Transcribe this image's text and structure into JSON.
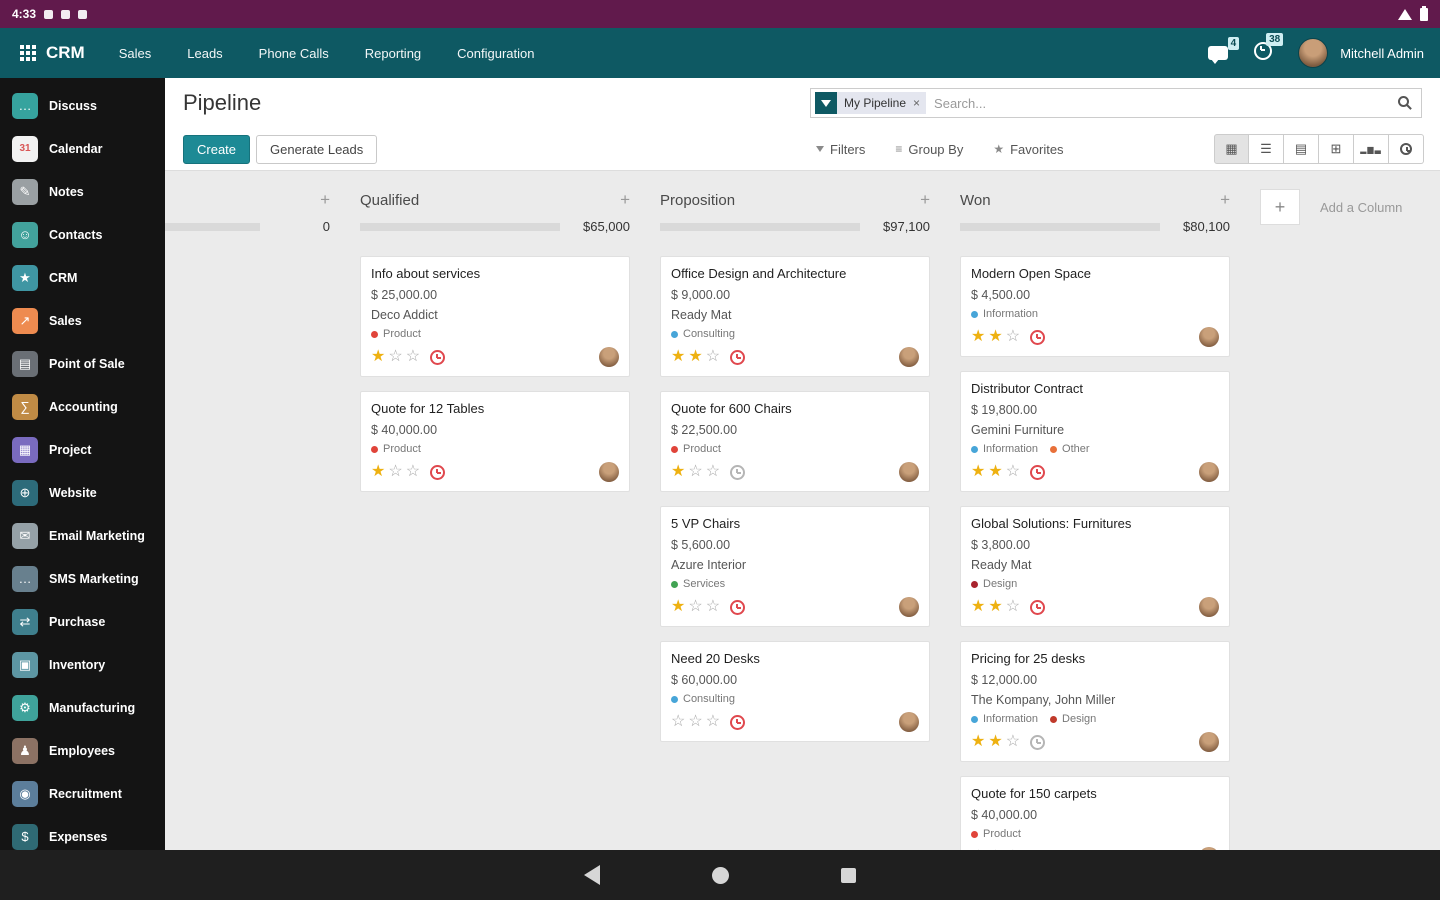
{
  "status_bar": {
    "time": "4:33"
  },
  "navbar": {
    "app_label": "CRM",
    "menus": [
      "Sales",
      "Leads",
      "Phone Calls",
      "Reporting",
      "Configuration"
    ],
    "message_badge": "4",
    "activity_badge": "38",
    "user_name": "Mitchell Admin"
  },
  "sidebar": {
    "items": [
      {
        "label": "Discuss",
        "icon": "chat-bubble",
        "glyph": "…",
        "color": "#36a39e"
      },
      {
        "label": "Calendar",
        "icon": "calendar",
        "glyph": "31",
        "color": "#f2f2f2",
        "fg": "#d95555"
      },
      {
        "label": "Notes",
        "icon": "pencil-note",
        "glyph": "✎",
        "color": "#9aa0a3"
      },
      {
        "label": "Contacts",
        "icon": "person",
        "glyph": "☺",
        "color": "#42a29c"
      },
      {
        "label": "CRM",
        "icon": "crm-star",
        "glyph": "★",
        "color": "#3f96a3"
      },
      {
        "label": "Sales",
        "icon": "sales-graph",
        "glyph": "↗",
        "color": "#ee8b50"
      },
      {
        "label": "Point of Sale",
        "icon": "cash-register",
        "glyph": "▤",
        "color": "#6a6f75"
      },
      {
        "label": "Accounting",
        "icon": "ledger-sum",
        "glyph": "∑",
        "color": "#c08b45"
      },
      {
        "label": "Project",
        "icon": "kanban-grid",
        "glyph": "▦",
        "color": "#7a6bbf"
      },
      {
        "label": "Website",
        "icon": "globe",
        "glyph": "⊕",
        "color": "#2d6b7a"
      },
      {
        "label": "Email Marketing",
        "icon": "envelope",
        "glyph": "✉",
        "color": "#95a1a7"
      },
      {
        "label": "SMS Marketing",
        "icon": "sms-bubble",
        "glyph": "…",
        "color": "#68808e"
      },
      {
        "label": "Purchase",
        "icon": "exchange-arrows",
        "glyph": "⇄",
        "color": "#3f7f8d"
      },
      {
        "label": "Inventory",
        "icon": "boxes",
        "glyph": "▣",
        "color": "#5d96a3"
      },
      {
        "label": "Manufacturing",
        "icon": "gear",
        "glyph": "⚙",
        "color": "#3fa39b"
      },
      {
        "label": "Employees",
        "icon": "employee-person",
        "glyph": "♟",
        "color": "#8c7264"
      },
      {
        "label": "Recruitment",
        "icon": "target-person",
        "glyph": "◉",
        "color": "#5c7e9b"
      },
      {
        "label": "Expenses",
        "icon": "dollar-receipt",
        "glyph": "$",
        "color": "#2f6a74"
      }
    ]
  },
  "control_panel": {
    "page_title": "Pipeline",
    "create_label": "Create",
    "generate_label": "Generate Leads",
    "facet_label": "My Pipeline",
    "facet_remove": "×",
    "search_placeholder": "Search...",
    "filters_label": "Filters",
    "group_by_label": "Group By",
    "favorites_label": "Favorites",
    "icons": {
      "group_by_glyph": "≡",
      "favorites_glyph": "★",
      "kanban_glyph": "▦",
      "list_glyph": "☰",
      "calendar_glyph": "▤",
      "pivot_glyph": "⊞",
      "graph_glyph": "▂▆▃"
    }
  },
  "board": {
    "add_glyph": "+",
    "add_column_label": "Add a Column",
    "hidden_column": {
      "amount": "0",
      "progress": 0
    },
    "columns": [
      {
        "name": "Qualified",
        "amount": "$65,000",
        "progress": 100,
        "cards": [
          {
            "title": "Info about services",
            "amount": "$ 25,000.00",
            "partner": "Deco Addict",
            "tags": [
              {
                "label": "Product",
                "color": "#e0443a"
              }
            ],
            "stars": 1,
            "activity": "overdue"
          },
          {
            "title": "Quote for 12 Tables",
            "amount": "$ 40,000.00",
            "tags": [
              {
                "label": "Product",
                "color": "#e0443a"
              }
            ],
            "stars": 1,
            "activity": "overdue"
          }
        ]
      },
      {
        "name": "Proposition",
        "amount": "$97,100",
        "progress": 67,
        "cards": [
          {
            "title": "Office Design and Architecture",
            "amount": "$ 9,000.00",
            "partner": "Ready Mat",
            "tags": [
              {
                "label": "Consulting",
                "color": "#47a5d8"
              }
            ],
            "stars": 2,
            "activity": "overdue"
          },
          {
            "title": "Quote for 600 Chairs",
            "amount": "$ 22,500.00",
            "tags": [
              {
                "label": "Product",
                "color": "#e0443a"
              }
            ],
            "stars": 1,
            "activity": "none"
          },
          {
            "title": "5 VP Chairs",
            "amount": "$ 5,600.00",
            "partner": "Azure Interior",
            "tags": [
              {
                "label": "Services",
                "color": "#41a353"
              }
            ],
            "stars": 1,
            "activity": "overdue"
          },
          {
            "title": "Need 20 Desks",
            "amount": "$ 60,000.00",
            "tags": [
              {
                "label": "Consulting",
                "color": "#47a5d8"
              }
            ],
            "stars": 0,
            "activity": "overdue"
          }
        ]
      },
      {
        "name": "Won",
        "amount": "$80,100",
        "progress": 61,
        "cards": [
          {
            "title": "Modern Open Space",
            "amount": "$ 4,500.00",
            "tags": [
              {
                "label": "Information",
                "color": "#47a5d8"
              }
            ],
            "stars": 2,
            "activity": "overdue"
          },
          {
            "title": "Distributor Contract",
            "amount": "$ 19,800.00",
            "partner": "Gemini Furniture",
            "tags": [
              {
                "label": "Information",
                "color": "#47a5d8"
              },
              {
                "label": "Other",
                "color": "#e8703a"
              }
            ],
            "stars": 2,
            "activity": "overdue"
          },
          {
            "title": "Global Solutions: Furnitures",
            "amount": "$ 3,800.00",
            "partner": "Ready Mat",
            "tags": [
              {
                "label": "Design",
                "color": "#a8232e"
              }
            ],
            "stars": 2,
            "activity": "overdue"
          },
          {
            "title": "Pricing for 25 desks",
            "amount": "$ 12,000.00",
            "partner": "The Kompany, John Miller",
            "tags": [
              {
                "label": "Information",
                "color": "#47a5d8"
              },
              {
                "label": "Design",
                "color": "#c03a2b"
              }
            ],
            "stars": 2,
            "activity": "none"
          },
          {
            "title": "Quote for 150 carpets",
            "amount": "$ 40,000.00",
            "tags": [
              {
                "label": "Product",
                "color": "#e0443a"
              }
            ],
            "stars": 0,
            "activity": "none"
          }
        ]
      }
    ]
  }
}
